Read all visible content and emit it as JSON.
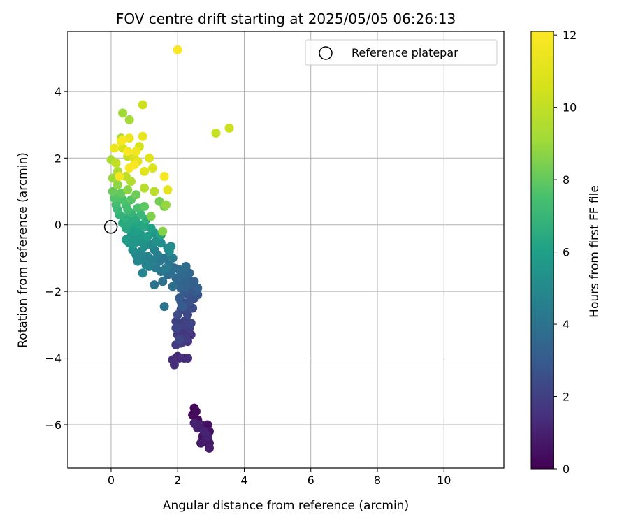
{
  "chart_data": {
    "type": "scatter",
    "title": "FOV centre drift starting at 2025/05/05 06:26:13",
    "xlabel": "Angular distance from reference (arcmin)",
    "ylabel": "Rotation from reference (arcmin)",
    "xlim": [
      -1.3,
      11.8
    ],
    "ylim": [
      -7.3,
      5.8
    ],
    "xticks": [
      0,
      2,
      4,
      6,
      8,
      10
    ],
    "yticks": [
      -6,
      -4,
      -2,
      0,
      2,
      4
    ],
    "xtick_labels": [
      "0",
      "2",
      "4",
      "6",
      "8",
      "10"
    ],
    "ytick_labels": [
      "−6",
      "−4",
      "−2",
      "0",
      "2",
      "4"
    ],
    "grid": true,
    "legend": {
      "placement": "top-right",
      "entries": [
        {
          "label": "Reference platepar",
          "marker": "hollow-circle"
        }
      ]
    },
    "reference_point": {
      "x": 0,
      "y": 0
    },
    "colorbar": {
      "label": "Hours from first FF file",
      "colormap": "viridis",
      "range": [
        0,
        12.1
      ],
      "ticks": [
        0,
        2,
        4,
        6,
        8,
        10,
        12
      ],
      "tick_labels": [
        "0",
        "2",
        "4",
        "6",
        "8",
        "10",
        "12"
      ]
    },
    "series": [
      {
        "columns": [
          "x",
          "y",
          "hours"
        ],
        "points": [
          [
            2.5,
            -5.5,
            0.2
          ],
          [
            2.55,
            -5.6,
            0.25
          ],
          [
            2.45,
            -5.7,
            0.3
          ],
          [
            2.6,
            -5.85,
            0.3
          ],
          [
            2.7,
            -6.0,
            0.35
          ],
          [
            2.8,
            -6.1,
            0.4
          ],
          [
            2.9,
            -6.0,
            0.45
          ],
          [
            2.95,
            -6.2,
            0.5
          ],
          [
            2.85,
            -6.3,
            0.55
          ],
          [
            2.75,
            -6.35,
            0.6
          ],
          [
            2.9,
            -6.45,
            0.65
          ],
          [
            2.95,
            -6.55,
            0.7
          ],
          [
            2.8,
            -6.5,
            0.75
          ],
          [
            2.7,
            -6.55,
            0.8
          ],
          [
            2.95,
            -6.7,
            0.85
          ],
          [
            2.6,
            -6.1,
            0.9
          ],
          [
            2.65,
            -6.0,
            0.95
          ],
          [
            2.9,
            -6.35,
            1.0
          ],
          [
            2.5,
            -5.95,
            1.0
          ],
          [
            2.8,
            -6.2,
            1.05
          ],
          [
            1.95,
            -4.0,
            1.2
          ],
          [
            2.0,
            -3.95,
            1.25
          ],
          [
            2.2,
            -4.0,
            1.3
          ],
          [
            2.3,
            -4.0,
            1.3
          ],
          [
            1.85,
            -4.05,
            1.35
          ],
          [
            1.9,
            -4.2,
            1.4
          ],
          [
            2.05,
            -4.0,
            1.4
          ],
          [
            2.3,
            -3.5,
            1.6
          ],
          [
            2.4,
            -3.3,
            1.65
          ],
          [
            2.2,
            -3.2,
            1.7
          ],
          [
            2.0,
            -3.3,
            1.75
          ],
          [
            1.95,
            -3.6,
            1.8
          ],
          [
            2.1,
            -3.55,
            1.85
          ],
          [
            2.25,
            -3.4,
            1.9
          ],
          [
            2.35,
            -3.1,
            1.95
          ],
          [
            2.2,
            -2.9,
            2.0
          ],
          [
            1.95,
            -2.9,
            2.05
          ],
          [
            2.15,
            -3.0,
            2.1
          ],
          [
            2.4,
            -2.95,
            2.15
          ],
          [
            2.05,
            -3.45,
            2.2
          ],
          [
            1.95,
            -3.1,
            2.25
          ],
          [
            2.3,
            -2.7,
            2.3
          ],
          [
            2.1,
            -2.55,
            2.35
          ],
          [
            2.0,
            -2.7,
            2.4
          ],
          [
            2.45,
            -2.5,
            2.45
          ],
          [
            2.25,
            -2.5,
            2.5
          ],
          [
            2.5,
            -2.2,
            2.6
          ],
          [
            2.35,
            -2.3,
            2.65
          ],
          [
            2.1,
            -2.3,
            2.7
          ],
          [
            2.6,
            -2.1,
            2.75
          ],
          [
            2.3,
            -2.1,
            2.8
          ],
          [
            2.45,
            -1.95,
            2.85
          ],
          [
            2.2,
            -2.0,
            2.9
          ],
          [
            2.55,
            -2.0,
            2.95
          ],
          [
            2.15,
            -2.45,
            3.0
          ],
          [
            2.05,
            -2.2,
            3.05
          ],
          [
            2.4,
            -1.8,
            3.1
          ],
          [
            2.5,
            -1.7,
            3.15
          ],
          [
            2.3,
            -1.6,
            3.2
          ],
          [
            2.6,
            -1.9,
            3.25
          ],
          [
            2.25,
            -1.85,
            3.3
          ],
          [
            2.1,
            -1.9,
            3.35
          ],
          [
            2.2,
            -1.7,
            3.4
          ],
          [
            2.0,
            -1.8,
            3.45
          ],
          [
            2.35,
            -1.45,
            3.5
          ],
          [
            2.15,
            -1.5,
            3.55
          ],
          [
            1.95,
            -1.6,
            3.6
          ],
          [
            1.9,
            -1.3,
            3.65
          ],
          [
            2.05,
            -1.35,
            3.7
          ],
          [
            2.25,
            -1.25,
            3.75
          ],
          [
            1.8,
            -1.45,
            3.8
          ],
          [
            1.7,
            -1.5,
            3.85
          ],
          [
            1.85,
            -1.85,
            3.9
          ],
          [
            1.55,
            -1.7,
            3.95
          ],
          [
            1.6,
            -2.45,
            4.0
          ],
          [
            1.3,
            -1.8,
            4.05
          ],
          [
            1.75,
            -1.2,
            4.1
          ],
          [
            1.6,
            -1.0,
            4.15
          ],
          [
            1.45,
            -1.1,
            4.2
          ],
          [
            1.5,
            -1.4,
            4.25
          ],
          [
            1.35,
            -1.3,
            4.3
          ],
          [
            1.65,
            -1.3,
            4.35
          ],
          [
            1.85,
            -1.0,
            4.4
          ],
          [
            1.4,
            -0.9,
            4.45
          ],
          [
            1.25,
            -1.05,
            4.5
          ],
          [
            1.15,
            -1.25,
            4.55
          ],
          [
            1.1,
            -0.95,
            4.6
          ],
          [
            1.3,
            -0.75,
            4.65
          ],
          [
            0.95,
            -1.05,
            4.7
          ],
          [
            1.05,
            -1.2,
            4.75
          ],
          [
            0.95,
            -1.45,
            4.8
          ],
          [
            0.8,
            -1.1,
            4.85
          ],
          [
            0.75,
            -0.9,
            4.9
          ],
          [
            0.9,
            -0.8,
            4.95
          ],
          [
            1.2,
            -0.6,
            5.0
          ],
          [
            1.7,
            -0.7,
            5.05
          ],
          [
            1.8,
            -0.65,
            5.1
          ],
          [
            1.75,
            -0.8,
            5.15
          ],
          [
            1.5,
            -0.55,
            5.2
          ],
          [
            0.65,
            -0.75,
            5.25
          ],
          [
            1.0,
            -0.65,
            5.3
          ],
          [
            1.35,
            -0.5,
            5.35
          ],
          [
            1.0,
            -0.45,
            5.4
          ],
          [
            0.85,
            -0.5,
            5.45
          ],
          [
            0.7,
            -0.55,
            5.5
          ],
          [
            0.55,
            -0.55,
            5.55
          ],
          [
            0.7,
            -0.4,
            5.6
          ],
          [
            1.3,
            -0.25,
            5.65
          ],
          [
            0.6,
            -0.35,
            5.7
          ],
          [
            0.45,
            -0.45,
            5.75
          ],
          [
            0.9,
            -0.3,
            5.8
          ],
          [
            1.1,
            -0.35,
            5.85
          ],
          [
            0.75,
            -0.2,
            5.9
          ],
          [
            0.55,
            -0.15,
            5.95
          ],
          [
            0.8,
            -0.1,
            6.0
          ],
          [
            1.2,
            -0.1,
            6.05
          ],
          [
            1.5,
            -0.3,
            6.1
          ],
          [
            0.65,
            0.05,
            6.2
          ],
          [
            0.85,
            0.0,
            6.25
          ],
          [
            1.0,
            -0.05,
            6.3
          ],
          [
            0.45,
            -0.1,
            6.35
          ],
          [
            0.35,
            0.05,
            6.4
          ],
          [
            0.55,
            0.1,
            6.45
          ],
          [
            0.75,
            0.2,
            6.5
          ],
          [
            1.05,
            0.15,
            6.6
          ],
          [
            0.4,
            0.2,
            6.7
          ],
          [
            0.25,
            0.3,
            6.8
          ],
          [
            0.6,
            0.35,
            6.9
          ],
          [
            0.9,
            0.3,
            7.0
          ],
          [
            0.2,
            0.45,
            7.1
          ],
          [
            0.5,
            0.45,
            7.2
          ],
          [
            0.15,
            0.6,
            7.3
          ],
          [
            0.45,
            0.6,
            7.4
          ],
          [
            0.8,
            0.5,
            7.5
          ],
          [
            0.35,
            0.75,
            7.6
          ],
          [
            0.1,
            0.8,
            7.7
          ],
          [
            0.6,
            0.75,
            7.8
          ],
          [
            1.0,
            0.55,
            7.9
          ],
          [
            0.3,
            0.95,
            8.0
          ],
          [
            0.05,
            1.0,
            8.1
          ],
          [
            0.75,
            0.9,
            8.2
          ],
          [
            1.45,
            0.7,
            8.3
          ],
          [
            1.6,
            0.55,
            8.4
          ],
          [
            1.2,
            0.25,
            8.5
          ],
          [
            1.55,
            -0.2,
            8.6
          ],
          [
            0.5,
            1.05,
            8.7
          ],
          [
            0.2,
            1.2,
            8.8
          ],
          [
            1.65,
            0.6,
            8.9
          ],
          [
            0.05,
            1.4,
            9.0
          ],
          [
            0.35,
            3.35,
            9.1
          ],
          [
            0.55,
            3.15,
            9.2
          ],
          [
            0.3,
            2.6,
            9.3
          ],
          [
            0.0,
            1.95,
            9.4
          ],
          [
            0.2,
            1.6,
            9.5
          ],
          [
            0.6,
            1.3,
            9.6
          ],
          [
            1.0,
            1.1,
            9.7
          ],
          [
            1.3,
            1.0,
            9.8
          ],
          [
            0.45,
            1.45,
            9.9
          ],
          [
            0.15,
            1.85,
            10.0
          ],
          [
            0.5,
            2.05,
            10.1
          ],
          [
            3.15,
            2.75,
            10.2
          ],
          [
            3.55,
            2.9,
            10.3
          ],
          [
            0.95,
            3.6,
            10.4
          ],
          [
            0.85,
            2.35,
            10.5
          ],
          [
            0.35,
            2.3,
            10.6
          ],
          [
            0.7,
            2.0,
            10.7
          ],
          [
            1.25,
            1.7,
            10.8
          ],
          [
            1.15,
            2.0,
            10.9
          ],
          [
            1.0,
            1.6,
            11.0
          ],
          [
            1.7,
            1.05,
            11.1
          ],
          [
            0.8,
            1.9,
            11.2
          ],
          [
            0.95,
            2.65,
            11.3
          ],
          [
            0.55,
            2.6,
            11.4
          ],
          [
            0.1,
            2.3,
            11.5
          ],
          [
            0.75,
            2.2,
            11.6
          ],
          [
            0.3,
            2.5,
            11.7
          ],
          [
            1.6,
            1.45,
            11.8
          ],
          [
            0.25,
            1.45,
            11.8
          ],
          [
            0.5,
            2.2,
            11.9
          ],
          [
            0.7,
            1.8,
            11.9
          ],
          [
            0.55,
            1.7,
            12.0
          ],
          [
            0.35,
            2.55,
            12.0
          ],
          [
            2.0,
            5.25,
            12.0
          ]
        ]
      }
    ]
  }
}
